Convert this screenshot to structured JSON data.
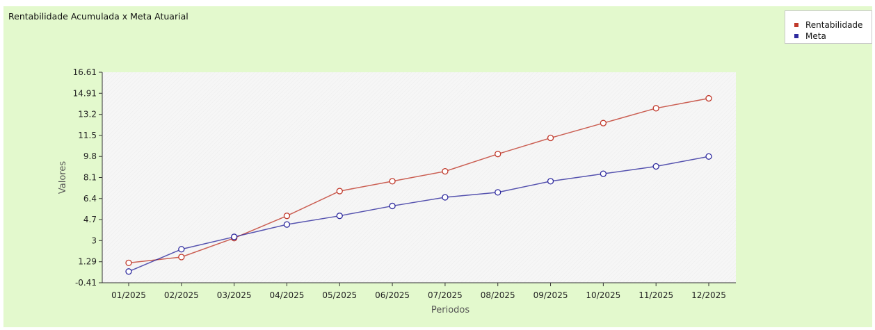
{
  "chart_data": {
    "type": "line",
    "title": "Rentabilidade Acumulada x Meta Atuarial",
    "xlabel": "Periodos",
    "ylabel": "Valores",
    "categories": [
      "01/2025",
      "02/2025",
      "03/2025",
      "04/2025",
      "05/2025",
      "06/2025",
      "07/2025",
      "08/2025",
      "09/2025",
      "10/2025",
      "11/2025",
      "12/2025"
    ],
    "yticks": [
      "-0.41",
      "1.29",
      "3",
      "4.7",
      "6.4",
      "8.1",
      "9.8",
      "11.5",
      "13.2",
      "14.91",
      "16.61"
    ],
    "ylim": [
      -0.41,
      16.61
    ],
    "grid": false,
    "legend_position": "top-right",
    "series": [
      {
        "name": "Rentabilidade",
        "color": "#c0392b",
        "values": [
          1.2,
          1.67,
          3.2,
          5.0,
          7.0,
          7.8,
          8.6,
          10.0,
          11.3,
          12.5,
          13.7,
          14.5
        ]
      },
      {
        "name": "Meta",
        "color": "#2e2a9e",
        "values": [
          0.5,
          2.3,
          3.3,
          4.3,
          5.0,
          5.8,
          6.5,
          6.9,
          7.8,
          8.4,
          9.0,
          9.8
        ]
      }
    ]
  }
}
